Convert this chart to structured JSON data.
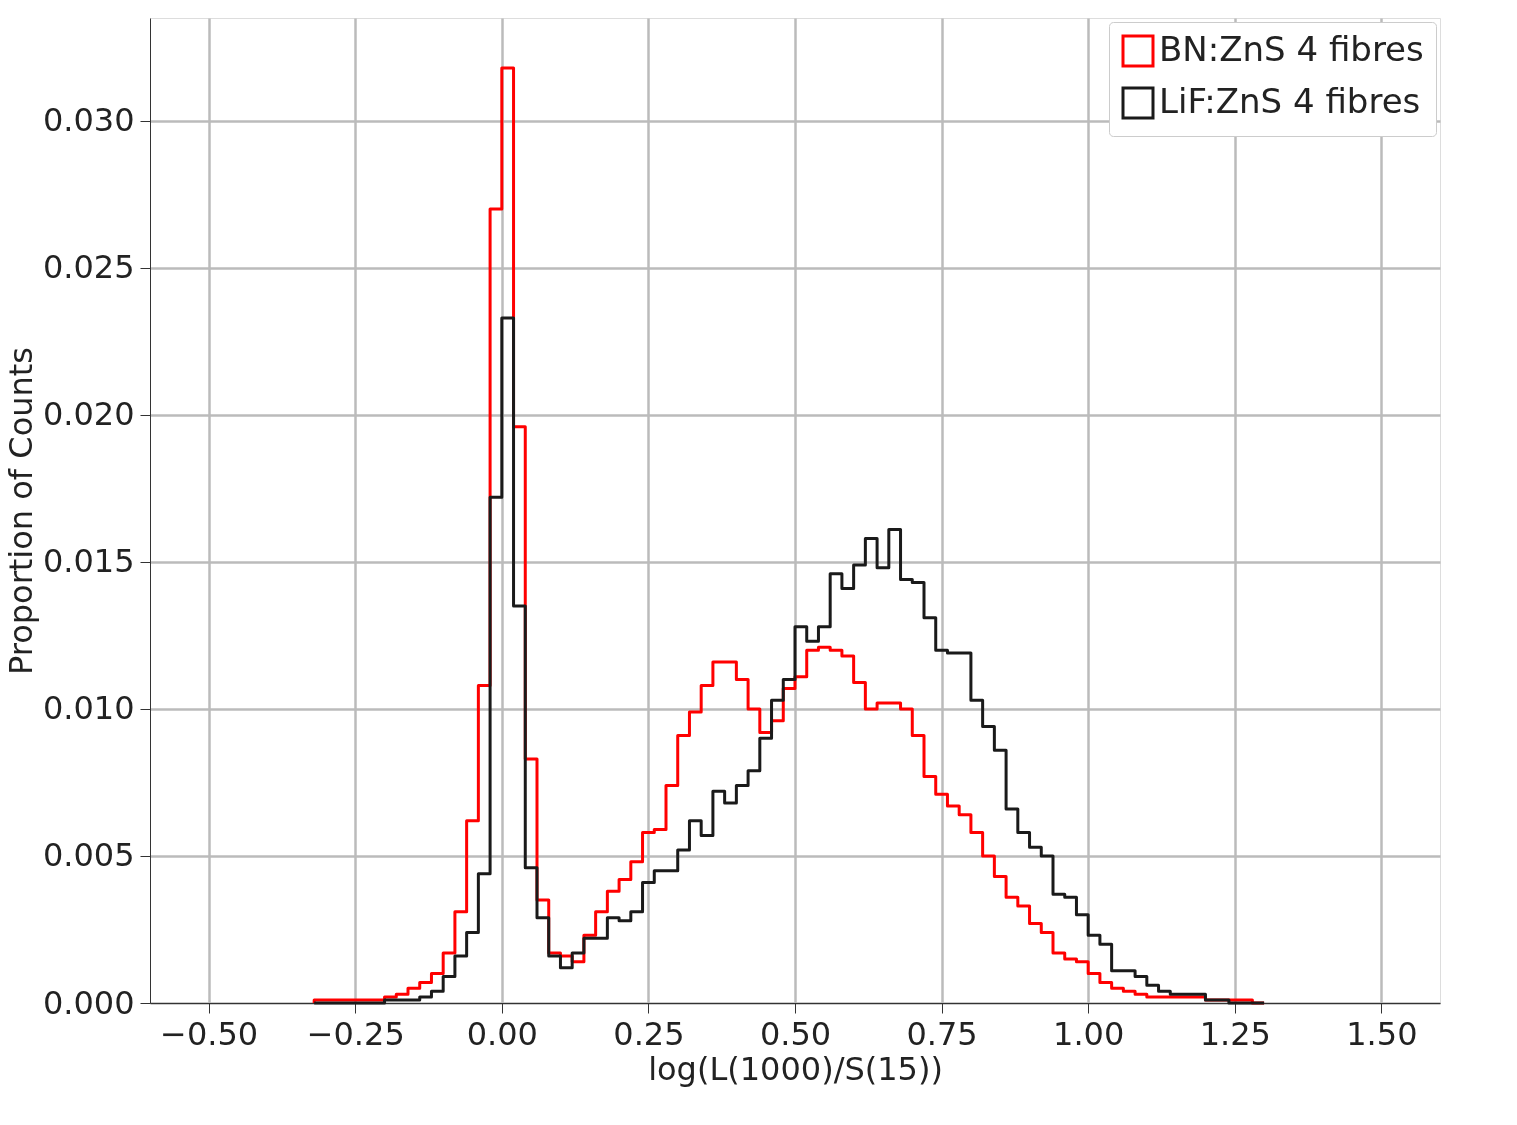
{
  "chart_data": {
    "type": "histogram",
    "xlabel": "log(L(1000)/S(15))",
    "ylabel": "Proportion of Counts",
    "bins": [
      -0.32,
      -0.3,
      -0.28,
      -0.26,
      -0.24,
      -0.22,
      -0.2,
      -0.18,
      -0.16,
      -0.14,
      -0.12,
      -0.1,
      -0.08,
      -0.06,
      -0.04,
      -0.02,
      0.0,
      0.02,
      0.04,
      0.06,
      0.08,
      0.1,
      0.12,
      0.14,
      0.16,
      0.18,
      0.2,
      0.22,
      0.24,
      0.26,
      0.28,
      0.3,
      0.32,
      0.34,
      0.36,
      0.38,
      0.4,
      0.42,
      0.44,
      0.46,
      0.48,
      0.5,
      0.52,
      0.54,
      0.56,
      0.58,
      0.6,
      0.62,
      0.64,
      0.66,
      0.68,
      0.7,
      0.72,
      0.74,
      0.76,
      0.78,
      0.8,
      0.82,
      0.84,
      0.86,
      0.88,
      0.9,
      0.92,
      0.94,
      0.96,
      0.98,
      1.0,
      1.02,
      1.04,
      1.06,
      1.08,
      1.1,
      1.12,
      1.14,
      1.16,
      1.18,
      1.2,
      1.22,
      1.24,
      1.26,
      1.28,
      1.3
    ],
    "series": [
      {
        "name": "BN:ZnS 4 fibres",
        "color": "#ff0000",
        "values": [
          0.0001,
          0.0001,
          0.0001,
          0.0001,
          0.0001,
          0.0001,
          0.0002,
          0.0003,
          0.0005,
          0.0007,
          0.001,
          0.0017,
          0.0031,
          0.0062,
          0.0108,
          0.027,
          0.0318,
          0.0196,
          0.0083,
          0.0035,
          0.0017,
          0.0016,
          0.0014,
          0.0023,
          0.0031,
          0.0038,
          0.0042,
          0.0048,
          0.0058,
          0.0059,
          0.0074,
          0.0091,
          0.0099,
          0.0108,
          0.0116,
          0.0116,
          0.011,
          0.01,
          0.0092,
          0.0096,
          0.0107,
          0.0111,
          0.012,
          0.0121,
          0.012,
          0.0118,
          0.0109,
          0.01,
          0.0102,
          0.0102,
          0.01,
          0.0091,
          0.0077,
          0.0071,
          0.0067,
          0.0064,
          0.0058,
          0.005,
          0.0043,
          0.0036,
          0.0033,
          0.0027,
          0.0024,
          0.0017,
          0.0015,
          0.0014,
          0.001,
          0.0007,
          0.0005,
          0.0004,
          0.0003,
          0.0002,
          0.0002,
          0.0002,
          0.0002,
          0.0002,
          0.0001,
          0.0001,
          0.0001,
          0.0001,
          0
        ]
      },
      {
        "name": "LiF:ZnS 4 fibres",
        "color": "#1a1a1a",
        "values": [
          0,
          0,
          0,
          0,
          0,
          0,
          0.0001,
          0.0001,
          0.0001,
          0.0002,
          0.0004,
          0.0009,
          0.0016,
          0.0024,
          0.0044,
          0.0172,
          0.0233,
          0.0135,
          0.0046,
          0.0029,
          0.0016,
          0.0012,
          0.0017,
          0.0022,
          0.0022,
          0.0029,
          0.0028,
          0.0031,
          0.0041,
          0.0045,
          0.0045,
          0.0052,
          0.0062,
          0.0057,
          0.0072,
          0.0068,
          0.0074,
          0.0079,
          0.009,
          0.0103,
          0.011,
          0.0128,
          0.0123,
          0.0128,
          0.0146,
          0.0141,
          0.0149,
          0.0158,
          0.0148,
          0.0161,
          0.0144,
          0.0143,
          0.0131,
          0.012,
          0.0119,
          0.0119,
          0.0103,
          0.0094,
          0.0086,
          0.0066,
          0.0058,
          0.0053,
          0.005,
          0.0037,
          0.0036,
          0.003,
          0.0023,
          0.002,
          0.0011,
          0.0011,
          0.0009,
          0.0006,
          0.0004,
          0.0003,
          0.0003,
          0.0003,
          0.0001,
          0.0001,
          0,
          0,
          0
        ]
      }
    ],
    "xlim": [
      -0.6,
      1.6
    ],
    "ylim": [
      0,
      0.0335
    ],
    "xticks": [
      {
        "value": -0.5,
        "label": "−0.50"
      },
      {
        "value": -0.25,
        "label": "−0.25"
      },
      {
        "value": 0,
        "label": "0.00"
      },
      {
        "value": 0.25,
        "label": "0.25"
      },
      {
        "value": 0.5,
        "label": "0.50"
      },
      {
        "value": 0.75,
        "label": "0.75"
      },
      {
        "value": 1,
        "label": "1.00"
      },
      {
        "value": 1.25,
        "label": "1.25"
      },
      {
        "value": 1.5,
        "label": "1.50"
      }
    ],
    "yticks": [
      {
        "value": 0,
        "label": "0.000"
      },
      {
        "value": 0.005,
        "label": "0.005"
      },
      {
        "value": 0.01,
        "label": "0.010"
      },
      {
        "value": 0.015,
        "label": "0.015"
      },
      {
        "value": 0.02,
        "label": "0.020"
      },
      {
        "value": 0.025,
        "label": "0.025"
      },
      {
        "value": 0.03,
        "label": "0.030"
      }
    ],
    "grid": true,
    "legend": "top right"
  }
}
